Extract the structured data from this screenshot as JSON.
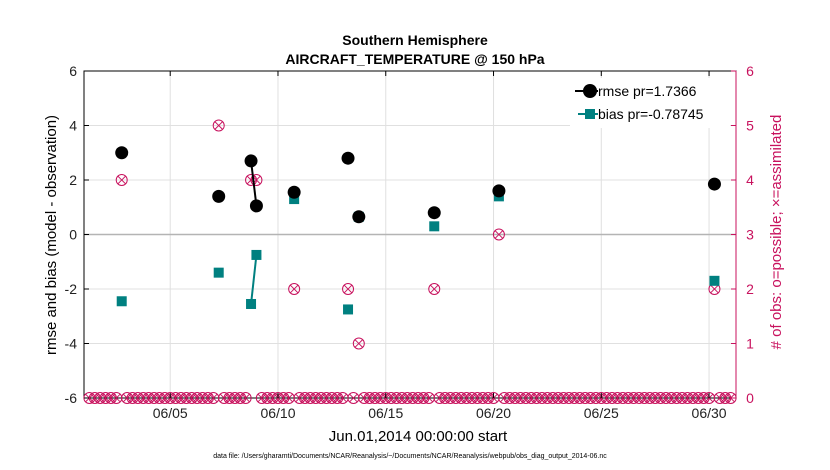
{
  "chart_data": {
    "type": "scatter",
    "title": "Southern Hemisphere",
    "subtitle": "AIRCRAFT_TEMPERATURE @ 150 hPa",
    "xlabel": "Jun.01,2014 00:00:00 start",
    "ylabel": "rmse and bias (model - observation)",
    "ylabel_right": "# of obs: o=possible; ×=assimilated",
    "footnote": "data file: /Users/gharamti/Documents/NCAR/Reanalysis/~/Documents/NCAR/Reanalysis/webpub/obs_diag_output_2014-06.nc",
    "xlim": [
      1.0,
      31.25
    ],
    "ylim": [
      -6,
      6
    ],
    "ylim_right": [
      0,
      6
    ],
    "x_ticks": [
      5,
      10,
      15,
      20,
      25,
      30
    ],
    "x_tick_labels": [
      "06/05",
      "06/10",
      "06/15",
      "06/20",
      "06/25",
      "06/30"
    ],
    "y_ticks": [
      -6,
      -4,
      -2,
      0,
      2,
      4,
      6
    ],
    "y_tick_labels": [
      "-6",
      "-4",
      "-2",
      "0",
      "2",
      "4",
      "6"
    ],
    "y_right_ticks": [
      0,
      1,
      2,
      3,
      4,
      5,
      6
    ],
    "y_right_tick_labels": [
      "0",
      "1",
      "2",
      "3",
      "4",
      "5",
      "6"
    ],
    "grid": true,
    "legend_position": "top-right",
    "colors": {
      "rmse": "#000000",
      "bias": "#008080",
      "obs": "#c8125e",
      "zero_line": "#b4b4b4",
      "grid": "#e0e0e0"
    },
    "series": [
      {
        "name": "rmse pr=1.7366",
        "marker": "circle",
        "points": [
          {
            "x": 2.75,
            "y": 3.0
          },
          {
            "x": 7.25,
            "y": 1.4
          },
          {
            "x": 8.75,
            "y": 2.7
          },
          {
            "x": 9.0,
            "y": 1.05
          },
          {
            "x": 10.75,
            "y": 1.55
          },
          {
            "x": 13.25,
            "y": 2.8
          },
          {
            "x": 13.75,
            "y": 0.65
          },
          {
            "x": 17.25,
            "y": 0.8
          },
          {
            "x": 20.25,
            "y": 1.6
          },
          {
            "x": 30.25,
            "y": 1.85
          }
        ],
        "segments": [
          [
            8.75,
            9.0
          ]
        ]
      },
      {
        "name": "bias pr=-0.78745",
        "marker": "square",
        "points": [
          {
            "x": 2.75,
            "y": -2.45
          },
          {
            "x": 7.25,
            "y": -1.4
          },
          {
            "x": 8.75,
            "y": -2.55
          },
          {
            "x": 9.0,
            "y": -0.75
          },
          {
            "x": 10.75,
            "y": 1.3
          },
          {
            "x": 13.25,
            "y": -2.75
          },
          {
            "x": 13.75,
            "y": 0.65
          },
          {
            "x": 17.25,
            "y": 0.3
          },
          {
            "x": 20.25,
            "y": 1.4
          },
          {
            "x": 30.25,
            "y": -1.7
          }
        ],
        "segments": [
          [
            8.75,
            9.0
          ]
        ]
      },
      {
        "name": "# of obs possible/assimilated",
        "axis": "right",
        "marker": "circle-x",
        "points": [
          {
            "x": 2.75,
            "y": 4
          },
          {
            "x": 7.25,
            "y": 5
          },
          {
            "x": 8.75,
            "y": 4
          },
          {
            "x": 9.0,
            "y": 4
          },
          {
            "x": 10.75,
            "y": 2
          },
          {
            "x": 13.25,
            "y": 2
          },
          {
            "x": 13.75,
            "y": 1
          },
          {
            "x": 17.25,
            "y": 2
          },
          {
            "x": 20.25,
            "y": 3
          },
          {
            "x": 30.25,
            "y": 2
          }
        ],
        "zero_count_x": {
          "start": 1.25,
          "end": 31.0,
          "step": 0.25
        }
      }
    ]
  }
}
